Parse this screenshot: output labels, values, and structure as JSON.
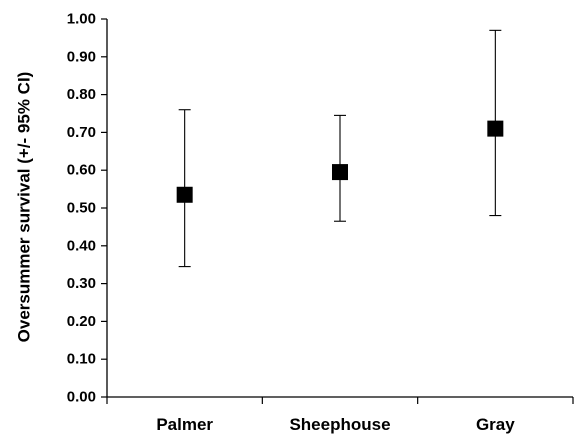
{
  "chart_data": {
    "type": "scatter",
    "title": "",
    "xlabel": "",
    "ylabel": "Oversummer survival (+/- 95% CI)",
    "categories": [
      "Palmer",
      "Sheephouse",
      "Gray"
    ],
    "values": [
      0.535,
      0.595,
      0.71
    ],
    "ci_lower": [
      0.345,
      0.465,
      0.48
    ],
    "ci_upper": [
      0.76,
      0.745,
      0.97
    ],
    "ylim": [
      0.0,
      1.0
    ],
    "yticks": [
      "0.00",
      "0.10",
      "0.20",
      "0.30",
      "0.40",
      "0.50",
      "0.60",
      "0.70",
      "0.80",
      "0.90",
      "1.00"
    ],
    "grid": false,
    "legend": "none",
    "marker": "square",
    "colors": {
      "marker": "#000000",
      "axis": "#000000",
      "error_bar": "#000000"
    }
  }
}
